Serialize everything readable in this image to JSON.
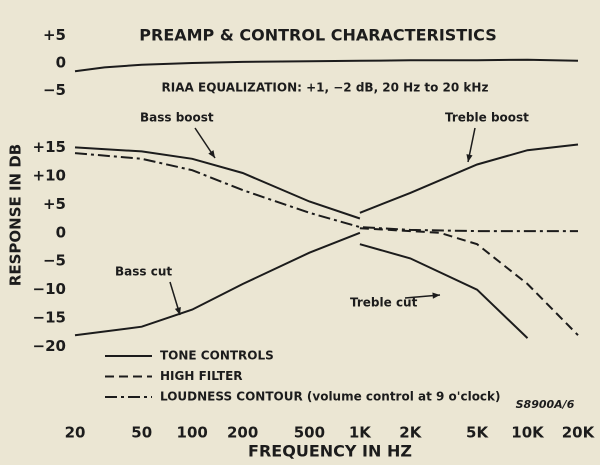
{
  "chart_data": [
    {
      "type": "line",
      "title": "PREAMP & CONTROL CHARACTERISTICS",
      "annotation": "RIAA EQUALIZATION: +1, −2 dB, 20 Hz to 20 kHz",
      "log_x": true,
      "xlim": [
        20,
        20000
      ],
      "ylim": [
        -8,
        8
      ],
      "yticks": [
        {
          "value": 5,
          "label": "+5"
        },
        0,
        {
          "value": -5,
          "label": "−5"
        }
      ],
      "series": [
        {
          "style": "solid",
          "color": "#1c1c1c",
          "x": [
            20,
            30,
            50,
            100,
            200,
            500,
            1000,
            2000,
            5000,
            10000,
            20000
          ],
          "values": [
            -1.5,
            -0.8,
            -0.3,
            0,
            0.2,
            0.3,
            0.4,
            0.5,
            0.5,
            0.6,
            0.4
          ]
        }
      ]
    },
    {
      "type": "line",
      "xlabel": "FREQUENCY IN HZ",
      "ylabel": "RESPONSE IN DB",
      "note": "S8900A/6",
      "log_x": true,
      "xlim": [
        20,
        20000
      ],
      "ylim": [
        -22,
        17
      ],
      "xticks": [
        20,
        50,
        100,
        200,
        500,
        {
          "value": 1000,
          "label": "1K"
        },
        {
          "value": 2000,
          "label": "2K"
        },
        {
          "value": 5000,
          "label": "5K"
        },
        {
          "value": 10000,
          "label": "10K"
        },
        {
          "value": 20000,
          "label": "20K"
        }
      ],
      "yticks": [
        {
          "value": 15,
          "label": "+15"
        },
        {
          "value": 10,
          "label": "+10"
        },
        {
          "value": 5,
          "label": "+5"
        },
        0,
        {
          "value": -5,
          "label": "−5"
        },
        {
          "value": -10,
          "label": "−10"
        },
        {
          "value": -15,
          "label": "−15"
        },
        {
          "value": -20,
          "label": "−20"
        }
      ],
      "legend": [
        {
          "label": "TONE CONTROLS",
          "style": "solid"
        },
        {
          "label": "HIGH FILTER",
          "style": "dashed"
        },
        {
          "label": "LOUDNESS CONTOUR (volume control at 9 o'clock)",
          "style": "dashdot"
        }
      ],
      "series": [
        {
          "name": "Bass boost",
          "style": "solid",
          "color": "#1c1c1c",
          "x": [
            20,
            50,
            100,
            200,
            500,
            1000
          ],
          "values": [
            15,
            14.3,
            13,
            10.5,
            5.5,
            2.5
          ]
        },
        {
          "name": "Bass cut",
          "style": "solid",
          "color": "#1c1c1c",
          "x": [
            20,
            50,
            100,
            200,
            500,
            1000
          ],
          "values": [
            -18,
            -16.5,
            -13.5,
            -9,
            -3.5,
            0
          ]
        },
        {
          "name": "Treble boost",
          "style": "solid",
          "color": "#1c1c1c",
          "x": [
            1000,
            2000,
            5000,
            10000,
            20000
          ],
          "values": [
            3.5,
            7,
            12,
            14.5,
            15.5
          ]
        },
        {
          "name": "Treble cut",
          "style": "solid",
          "color": "#1c1c1c",
          "x": [
            1000,
            2000,
            5000,
            10000
          ],
          "values": [
            -2,
            -4.5,
            -10,
            -18.5
          ]
        },
        {
          "style": "dashed",
          "color": "#1c1c1c",
          "x": [
            1000,
            2000,
            3000,
            5000,
            10000,
            20000
          ],
          "values": [
            0.8,
            0.3,
            0,
            -2,
            -9,
            -18
          ]
        },
        {
          "style": "dashdot",
          "color": "#1c1c1c",
          "x": [
            20,
            50,
            100,
            200,
            500,
            1000,
            2000,
            5000,
            10000,
            20000
          ],
          "values": [
            14,
            13,
            11,
            7.5,
            3.5,
            1,
            0.5,
            0.3,
            0.3,
            0.3
          ]
        }
      ]
    }
  ]
}
